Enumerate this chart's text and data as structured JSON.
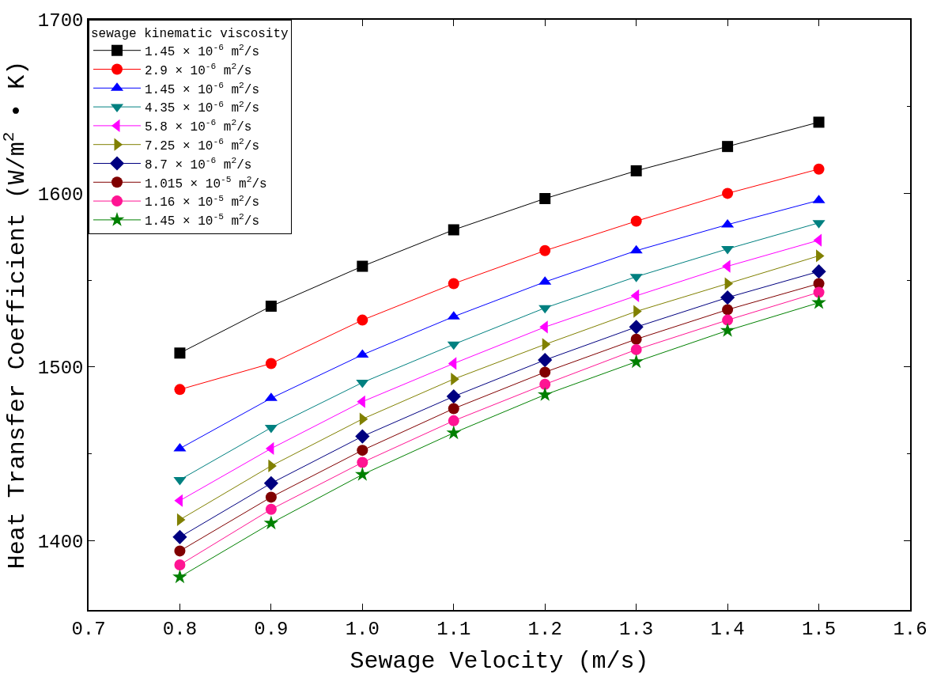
{
  "chart_data": {
    "type": "line",
    "xlabel": "Sewage Velocity (m/s)",
    "ylabel": "Heat Transfer Coefficient (W/m$^{2}$ • K)",
    "legend_title": "sewage kinematic viscosity",
    "x": [
      0.8,
      0.9,
      1.0,
      1.1,
      1.2,
      1.3,
      1.4,
      1.5
    ],
    "series": [
      {
        "name": "1.45 × 10$^{-6}$ m$^{2}$/s",
        "color": "#000000",
        "marker": "square",
        "values": [
          1508,
          1535,
          1558,
          1579,
          1597,
          1613,
          1627,
          1641
        ]
      },
      {
        "name": "2.9 × 10$^{-6}$ m$^{2}$/s",
        "color": "#ff0000",
        "marker": "circle",
        "values": [
          1487,
          1502,
          1527,
          1548,
          1567,
          1584,
          1600,
          1614
        ]
      },
      {
        "name": "1.45 × 10$^{-6}$ m$^{2}$/s",
        "color": "#0000ff",
        "marker": "triangle-up",
        "values": [
          1453,
          1482,
          1507,
          1529,
          1549,
          1567,
          1582,
          1596
        ]
      },
      {
        "name": "4.35 × 10$^{-6}$ m$^{2}$/s",
        "color": "#008080",
        "marker": "triangle-down",
        "values": [
          1435,
          1465,
          1491,
          1513,
          1534,
          1552,
          1568,
          1583
        ]
      },
      {
        "name": "5.8 × 10$^{-6}$ m$^{2}$/s",
        "color": "#ff00ff",
        "marker": "triangle-left",
        "values": [
          1423,
          1453,
          1480,
          1502,
          1523,
          1541,
          1558,
          1573
        ]
      },
      {
        "name": "7.25 × 10$^{-6}$ m$^{2}$/s",
        "color": "#808000",
        "marker": "triangle-right",
        "values": [
          1412,
          1443,
          1470,
          1493,
          1513,
          1532,
          1548,
          1564
        ]
      },
      {
        "name": "8.7 × 10$^{-6}$ m$^{2}$/s",
        "color": "#000080",
        "marker": "diamond",
        "values": [
          1402,
          1433,
          1460,
          1483,
          1504,
          1523,
          1540,
          1555
        ]
      },
      {
        "name": "1.015 × 10$^{-5}$ m$^{2}$/s",
        "color": "#800000",
        "marker": "circle",
        "values": [
          1394,
          1425,
          1452,
          1476,
          1497,
          1516,
          1533,
          1548
        ]
      },
      {
        "name": "1.16 × 10$^{-5}$ m$^{2}$/s",
        "color": "#ff1493",
        "marker": "circle",
        "values": [
          1386,
          1418,
          1445,
          1469,
          1490,
          1510,
          1527,
          1543
        ]
      },
      {
        "name": "1.45 × 10$^{-5}$ m$^{2}$/s",
        "color": "#008000",
        "marker": "star",
        "values": [
          1379,
          1410,
          1438,
          1462,
          1484,
          1503,
          1521,
          1537
        ]
      }
    ],
    "xlim": [
      0.7,
      1.6
    ],
    "xticks": [
      {
        "value": 0.7,
        "label": "0.7"
      },
      {
        "value": 0.8,
        "label": "0.8"
      },
      {
        "value": 0.9,
        "label": "0.9"
      },
      {
        "value": 1.0,
        "label": "1.0"
      },
      {
        "value": 1.1,
        "label": "1.1"
      },
      {
        "value": 1.2,
        "label": "1.2"
      },
      {
        "value": 1.3,
        "label": "1.3"
      },
      {
        "value": 1.4,
        "label": "1.4"
      },
      {
        "value": 1.5,
        "label": "1.5"
      },
      {
        "value": 1.6,
        "label": "1.6"
      }
    ],
    "ylim": [
      1360,
      1700
    ],
    "yticks": [
      1400,
      1500,
      1600,
      1700
    ],
    "legend": "top left",
    "grid": false,
    "line_style": "solid"
  }
}
